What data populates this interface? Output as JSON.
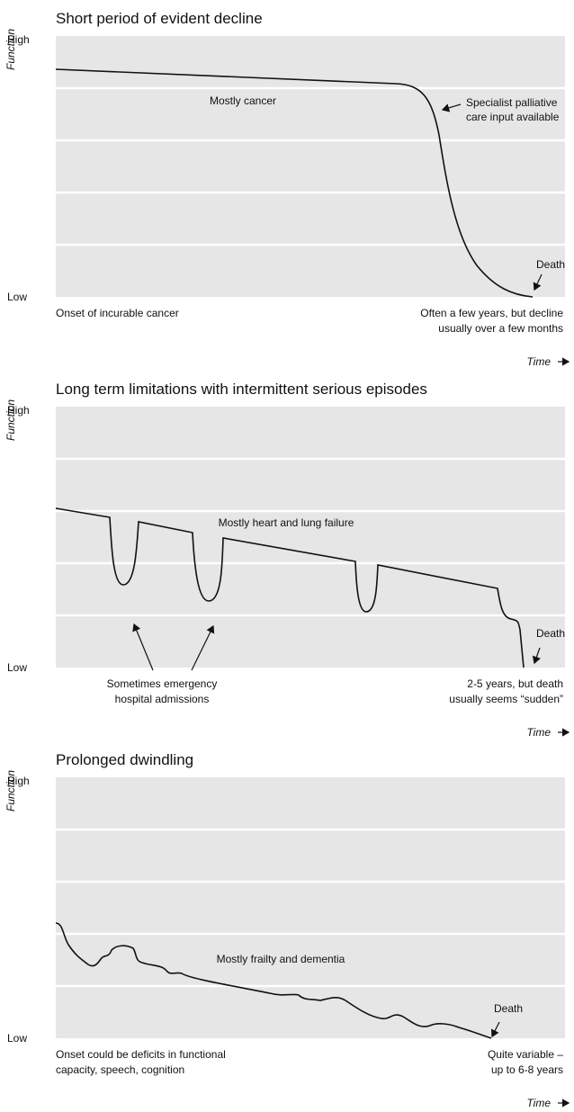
{
  "panels": [
    {
      "title": "Short period of evident decline",
      "y_axis": "Function",
      "high": "High",
      "low": "Low",
      "label": "Mostly cancer",
      "annotation": [
        "Specialist palliative",
        "care input available"
      ],
      "death": "Death",
      "left_note": [
        "Onset of incurable cancer"
      ],
      "right_note": [
        "Often a few years, but decline",
        "usually over a few months"
      ],
      "time": "Time"
    },
    {
      "title": "Long term limitations with intermittent serious episodes",
      "y_axis": "Function",
      "high": "High",
      "low": "Low",
      "label": "Mostly heart and lung failure",
      "annotation": [],
      "death": "Death",
      "left_note": [
        "Sometimes emergency",
        "hospital admissions"
      ],
      "right_note": [
        "2-5 years, but death",
        "usually seems “sudden”"
      ],
      "time": "Time"
    },
    {
      "title": "Prolonged dwindling",
      "y_axis": "Function",
      "high": "High",
      "low": "Low",
      "label": "Mostly frailty and dementia",
      "annotation": [],
      "death": "Death",
      "left_note": [
        "Onset could be deficits in functional",
        "capacity, speech, cognition"
      ],
      "right_note": [
        "Quite variable –",
        "up to 6-8 years"
      ],
      "time": "Time"
    }
  ]
}
